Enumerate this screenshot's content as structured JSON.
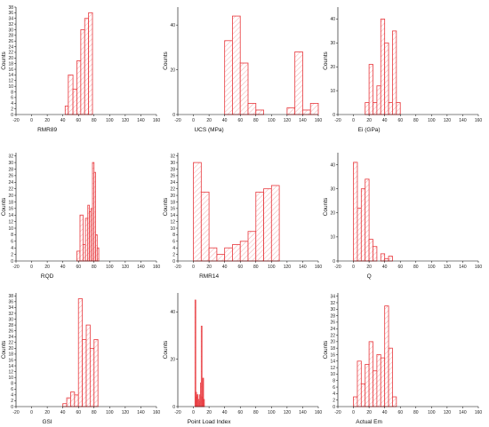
{
  "colors": {
    "bar_stroke": "#e8383d",
    "hatch": "#f08a8a",
    "axis": "#000000"
  },
  "chart_data": [
    {
      "type": "bar",
      "xlabel": "RMR89",
      "ylabel": "Counts",
      "xlim": [
        -20,
        160
      ],
      "ylim": [
        0,
        38
      ],
      "xticks": [
        "-20",
        "0",
        "20",
        "40",
        "60",
        "80",
        "100",
        "120",
        "140",
        "160"
      ],
      "yticks": [
        "0",
        "2",
        "4",
        "6",
        "8",
        "10",
        "12",
        "14",
        "16",
        "18",
        "20",
        "22",
        "24",
        "26",
        "28",
        "30",
        "32",
        "34",
        "36",
        "38"
      ],
      "bins": [
        [
          43,
          47
        ],
        [
          47,
          53
        ],
        [
          53,
          58
        ],
        [
          58,
          63
        ],
        [
          63,
          68
        ],
        [
          68,
          73
        ],
        [
          73,
          78
        ]
      ],
      "values": [
        3,
        14,
        9,
        19,
        30,
        34,
        36
      ]
    },
    {
      "type": "bar",
      "xlabel": "UCS (MPa)",
      "ylabel": "Counts",
      "xlim": [
        -20,
        160
      ],
      "ylim": [
        0,
        48
      ],
      "xticks": [
        "-20",
        "0",
        "20",
        "40",
        "60",
        "80",
        "100",
        "120",
        "140",
        "160"
      ],
      "yticks": [
        "0",
        "20",
        "40"
      ],
      "bins": [
        [
          40,
          50
        ],
        [
          50,
          60
        ],
        [
          60,
          70
        ],
        [
          70,
          80
        ],
        [
          80,
          90
        ],
        [
          90,
          100
        ],
        [
          100,
          110
        ],
        [
          110,
          120
        ],
        [
          120,
          130
        ],
        [
          130,
          140
        ],
        [
          140,
          150
        ],
        [
          150,
          160
        ]
      ],
      "values": [
        33,
        44,
        23,
        5,
        2,
        0,
        0,
        0,
        3,
        28,
        2,
        5
      ]
    },
    {
      "type": "bar",
      "xlabel": "Ei (GPa)",
      "ylabel": "Counts",
      "xlim": [
        -20,
        160
      ],
      "ylim": [
        0,
        45
      ],
      "xticks": [
        "-20",
        "0",
        "20",
        "40",
        "60",
        "80",
        "100",
        "120",
        "140",
        "160"
      ],
      "yticks": [
        "0",
        "10",
        "20",
        "30",
        "40"
      ],
      "bins": [
        [
          15,
          20
        ],
        [
          20,
          25
        ],
        [
          25,
          30
        ],
        [
          30,
          35
        ],
        [
          35,
          40
        ],
        [
          40,
          45
        ],
        [
          45,
          50
        ],
        [
          50,
          55
        ],
        [
          55,
          60
        ]
      ],
      "values": [
        5,
        21,
        5,
        12,
        40,
        30,
        5,
        35,
        5
      ]
    },
    {
      "type": "bar",
      "xlabel": "RQD",
      "ylabel": "Counts",
      "xlim": [
        -20,
        160
      ],
      "ylim": [
        0,
        33
      ],
      "xticks": [
        "-20",
        "0",
        "20",
        "40",
        "60",
        "80",
        "100",
        "120",
        "140",
        "160"
      ],
      "yticks": [
        "0",
        "2",
        "4",
        "6",
        "8",
        "10",
        "12",
        "14",
        "16",
        "18",
        "20",
        "22",
        "24",
        "26",
        "28",
        "30",
        "32"
      ],
      "bins": [
        [
          58,
          62
        ],
        [
          62,
          66
        ],
        [
          66,
          69
        ],
        [
          69,
          72
        ],
        [
          72,
          74
        ],
        [
          74,
          76
        ],
        [
          76,
          78
        ],
        [
          78,
          80
        ],
        [
          80,
          82
        ],
        [
          82,
          84
        ],
        [
          84,
          86
        ]
      ],
      "values": [
        3,
        14,
        5,
        13,
        17,
        15,
        16,
        30,
        27,
        8,
        4
      ]
    },
    {
      "type": "bar",
      "xlabel": "RMR14",
      "ylabel": "Counts",
      "xlim": [
        -20,
        160
      ],
      "ylim": [
        0,
        33
      ],
      "xticks": [
        "-20",
        "0",
        "20",
        "40",
        "60",
        "80",
        "100",
        "120",
        "140",
        "160"
      ],
      "yticks": [
        "0",
        "2",
        "4",
        "6",
        "8",
        "10",
        "12",
        "14",
        "16",
        "18",
        "20",
        "22",
        "24",
        "26",
        "28",
        "30",
        "32"
      ],
      "bins": [
        [
          0,
          10
        ],
        [
          10,
          20
        ],
        [
          20,
          30
        ],
        [
          30,
          40
        ],
        [
          40,
          50
        ],
        [
          50,
          60
        ],
        [
          60,
          70
        ],
        [
          70,
          80
        ],
        [
          80,
          90
        ],
        [
          90,
          100
        ],
        [
          100,
          110
        ]
      ],
      "values": [
        30,
        21,
        4,
        2,
        4,
        5,
        6,
        9,
        21,
        22,
        23
      ]
    },
    {
      "type": "bar",
      "xlabel": "Q",
      "ylabel": "Counts",
      "xlim": [
        -20,
        160
      ],
      "ylim": [
        0,
        45
      ],
      "xticks": [
        "-20",
        "0",
        "20",
        "40",
        "60",
        "80",
        "100",
        "120",
        "140",
        "160"
      ],
      "yticks": [
        "0",
        "10",
        "20",
        "30",
        "40"
      ],
      "bins": [
        [
          0,
          5
        ],
        [
          5,
          10
        ],
        [
          10,
          15
        ],
        [
          15,
          20
        ],
        [
          20,
          25
        ],
        [
          25,
          30
        ],
        [
          30,
          35
        ],
        [
          35,
          40
        ],
        [
          40,
          45
        ],
        [
          45,
          50
        ]
      ],
      "values": [
        41,
        22,
        30,
        34,
        9,
        6,
        0,
        3,
        1,
        2
      ]
    },
    {
      "type": "bar",
      "xlabel": "GSI",
      "ylabel": "Counts",
      "xlim": [
        -20,
        160
      ],
      "ylim": [
        0,
        39
      ],
      "xticks": [
        "-20",
        "0",
        "20",
        "40",
        "60",
        "80",
        "100",
        "120",
        "140",
        "160"
      ],
      "yticks": [
        "0",
        "2",
        "4",
        "6",
        "8",
        "10",
        "12",
        "14",
        "16",
        "18",
        "20",
        "22",
        "24",
        "26",
        "28",
        "30",
        "32",
        "34",
        "36",
        "38"
      ],
      "bins": [
        [
          40,
          45
        ],
        [
          45,
          50
        ],
        [
          50,
          55
        ],
        [
          55,
          60
        ],
        [
          60,
          65
        ],
        [
          65,
          70
        ],
        [
          70,
          75
        ],
        [
          75,
          80
        ],
        [
          80,
          85
        ]
      ],
      "values": [
        1,
        3,
        5,
        4,
        37,
        23,
        28,
        20,
        23
      ]
    },
    {
      "type": "bar",
      "xlabel": "Point Load Index",
      "ylabel": "Counts",
      "xlim": [
        -20,
        160
      ],
      "ylim": [
        0,
        48
      ],
      "xticks": [
        "-20",
        "0",
        "20",
        "40",
        "60",
        "80",
        "100",
        "120",
        "140",
        "160"
      ],
      "yticks": [
        "0",
        "20",
        "40"
      ],
      "bins": [
        [
          2,
          3
        ],
        [
          3,
          4
        ],
        [
          4,
          5
        ],
        [
          5,
          6
        ],
        [
          6,
          7
        ],
        [
          7,
          8
        ],
        [
          8,
          9
        ],
        [
          9,
          10
        ],
        [
          10,
          11
        ],
        [
          11,
          12
        ],
        [
          12,
          13
        ],
        [
          13,
          14
        ]
      ],
      "values": [
        45,
        6,
        4,
        5,
        3,
        2,
        5,
        10,
        34,
        4,
        12,
        3
      ]
    },
    {
      "type": "bar",
      "xlabel": "Actual Em",
      "ylabel": "Counts",
      "xlim": [
        -20,
        160
      ],
      "ylim": [
        0,
        35
      ],
      "xticks": [
        "-20",
        "0",
        "20",
        "40",
        "60",
        "80",
        "100",
        "120",
        "140",
        "160"
      ],
      "yticks": [
        "0",
        "2",
        "4",
        "6",
        "8",
        "10",
        "12",
        "14",
        "16",
        "18",
        "20",
        "22",
        "24",
        "26",
        "28",
        "30",
        "32",
        "34"
      ],
      "bins": [
        [
          0,
          5
        ],
        [
          5,
          10
        ],
        [
          10,
          15
        ],
        [
          15,
          20
        ],
        [
          20,
          25
        ],
        [
          25,
          30
        ],
        [
          30,
          35
        ],
        [
          35,
          40
        ],
        [
          40,
          45
        ],
        [
          45,
          50
        ],
        [
          50,
          55
        ],
        [
          55,
          60
        ]
      ],
      "values": [
        3,
        14,
        7,
        13,
        20,
        11,
        16,
        15,
        31,
        18,
        3,
        0
      ]
    }
  ]
}
